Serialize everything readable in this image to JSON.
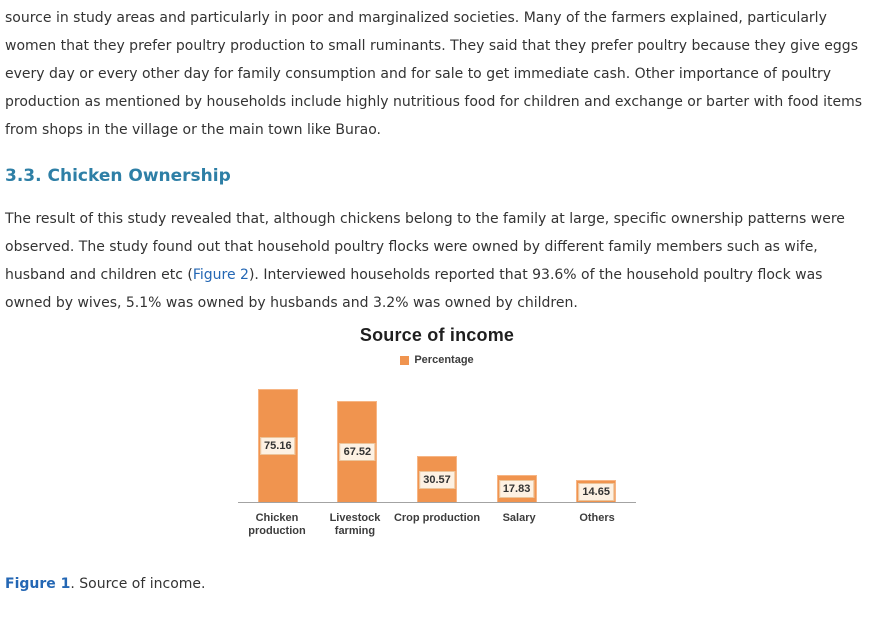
{
  "article": {
    "paragraph1": "source in study areas and particularly in poor and marginalized societies. Many of the farmers explained, particularly women that they prefer poultry production to small ruminants. They said that they prefer poultry because they give eggs every day or every other day for family consumption and for sale to get immediate cash. Other importance of poultry production as mentioned by households include highly nutritious food for children and exchange or barter with food items from shops in the village or the main town like Burao.",
    "section_heading": "3.3. Chicken Ownership",
    "paragraph2": {
      "text_before": "The result of this study revealed that, although chickens belong to the family at large, specific ownership patterns were observed. The study found out that household poultry flocks were owned by different family members such as wife, husband and children etc (",
      "link_text": "Figure 2",
      "text_after": "). Interviewed households reported that 93.6% of the household poultry flock was owned by wives, 5.1% was owned by husbands and 3.2% was owned by children."
    },
    "caption": {
      "label": "Figure 1",
      "text": ". Source of income."
    }
  },
  "chart_data": {
    "type": "bar",
    "title": "Source of income",
    "categories": [
      "Chicken production",
      "Livestock farming",
      "Crop production",
      "Salary",
      "Others"
    ],
    "tick_lines": [
      [
        "Chicken",
        "production"
      ],
      [
        "Livestock",
        "farming"
      ],
      [
        "Crop production"
      ],
      [
        "Salary"
      ],
      [
        "Others"
      ]
    ],
    "series": [
      {
        "name": "Percentage",
        "values": [
          75.16,
          67.52,
          30.57,
          17.83,
          14.65
        ]
      }
    ],
    "data_labels": [
      "75.16",
      "67.52",
      "30.57",
      "17.83",
      "14.65"
    ],
    "xlabel": "",
    "ylabel": "",
    "ylim": [
      0,
      80
    ],
    "grid": false,
    "legend_position": "top",
    "bar_color": "#F0944F"
  },
  "colors": {
    "accent_orange": "#F0944F",
    "label_box_fill": "#FDF1E3",
    "label_box_border": "#ECC49A",
    "axis_line": "#A3A3A3",
    "heading_teal": "#2E7FA6",
    "link_blue": "#2467B4",
    "body_text": "#333333"
  }
}
